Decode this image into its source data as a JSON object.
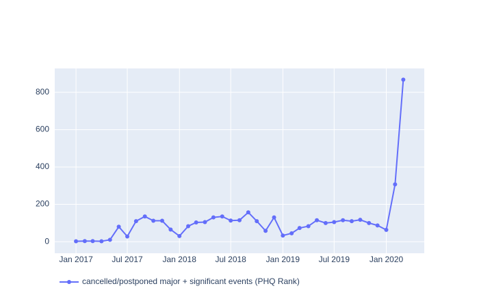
{
  "chart_data": {
    "type": "line",
    "x": [
      "2017-01",
      "2017-02",
      "2017-03",
      "2017-04",
      "2017-05",
      "2017-06",
      "2017-07",
      "2017-08",
      "2017-09",
      "2017-10",
      "2017-11",
      "2017-12",
      "2018-01",
      "2018-02",
      "2018-03",
      "2018-04",
      "2018-05",
      "2018-06",
      "2018-07",
      "2018-08",
      "2018-09",
      "2018-10",
      "2018-11",
      "2018-12",
      "2019-01",
      "2019-02",
      "2019-03",
      "2019-04",
      "2019-05",
      "2019-06",
      "2019-07",
      "2019-08",
      "2019-09",
      "2019-10",
      "2019-11",
      "2019-12",
      "2020-01",
      "2020-02",
      "2020-03"
    ],
    "series": [
      {
        "name": "cancelled/postponed major + significant events (PHQ Rank)",
        "color": "#636efa",
        "values": [
          2,
          3,
          3,
          2,
          10,
          80,
          28,
          110,
          135,
          112,
          112,
          65,
          30,
          83,
          103,
          105,
          130,
          135,
          113,
          115,
          157,
          110,
          58,
          130,
          33,
          45,
          73,
          83,
          115,
          100,
          105,
          115,
          110,
          117,
          100,
          87,
          63,
          307,
          868
        ]
      }
    ],
    "xlim": [
      "2016-10-18",
      "2020-05-14"
    ],
    "xticks": [
      {
        "value": "2017-01",
        "label": "Jan 2017"
      },
      {
        "value": "2017-07",
        "label": "Jul 2017"
      },
      {
        "value": "2018-01",
        "label": "Jan 2018"
      },
      {
        "value": "2018-07",
        "label": "Jul 2018"
      },
      {
        "value": "2019-01",
        "label": "Jan 2019"
      },
      {
        "value": "2019-07",
        "label": "Jul 2019"
      },
      {
        "value": "2020-01",
        "label": "Jan 2020"
      }
    ],
    "ylim": [
      -62,
      928
    ],
    "yticks": [
      0,
      200,
      400,
      600,
      800
    ],
    "grid": true,
    "legend": "bottom"
  }
}
